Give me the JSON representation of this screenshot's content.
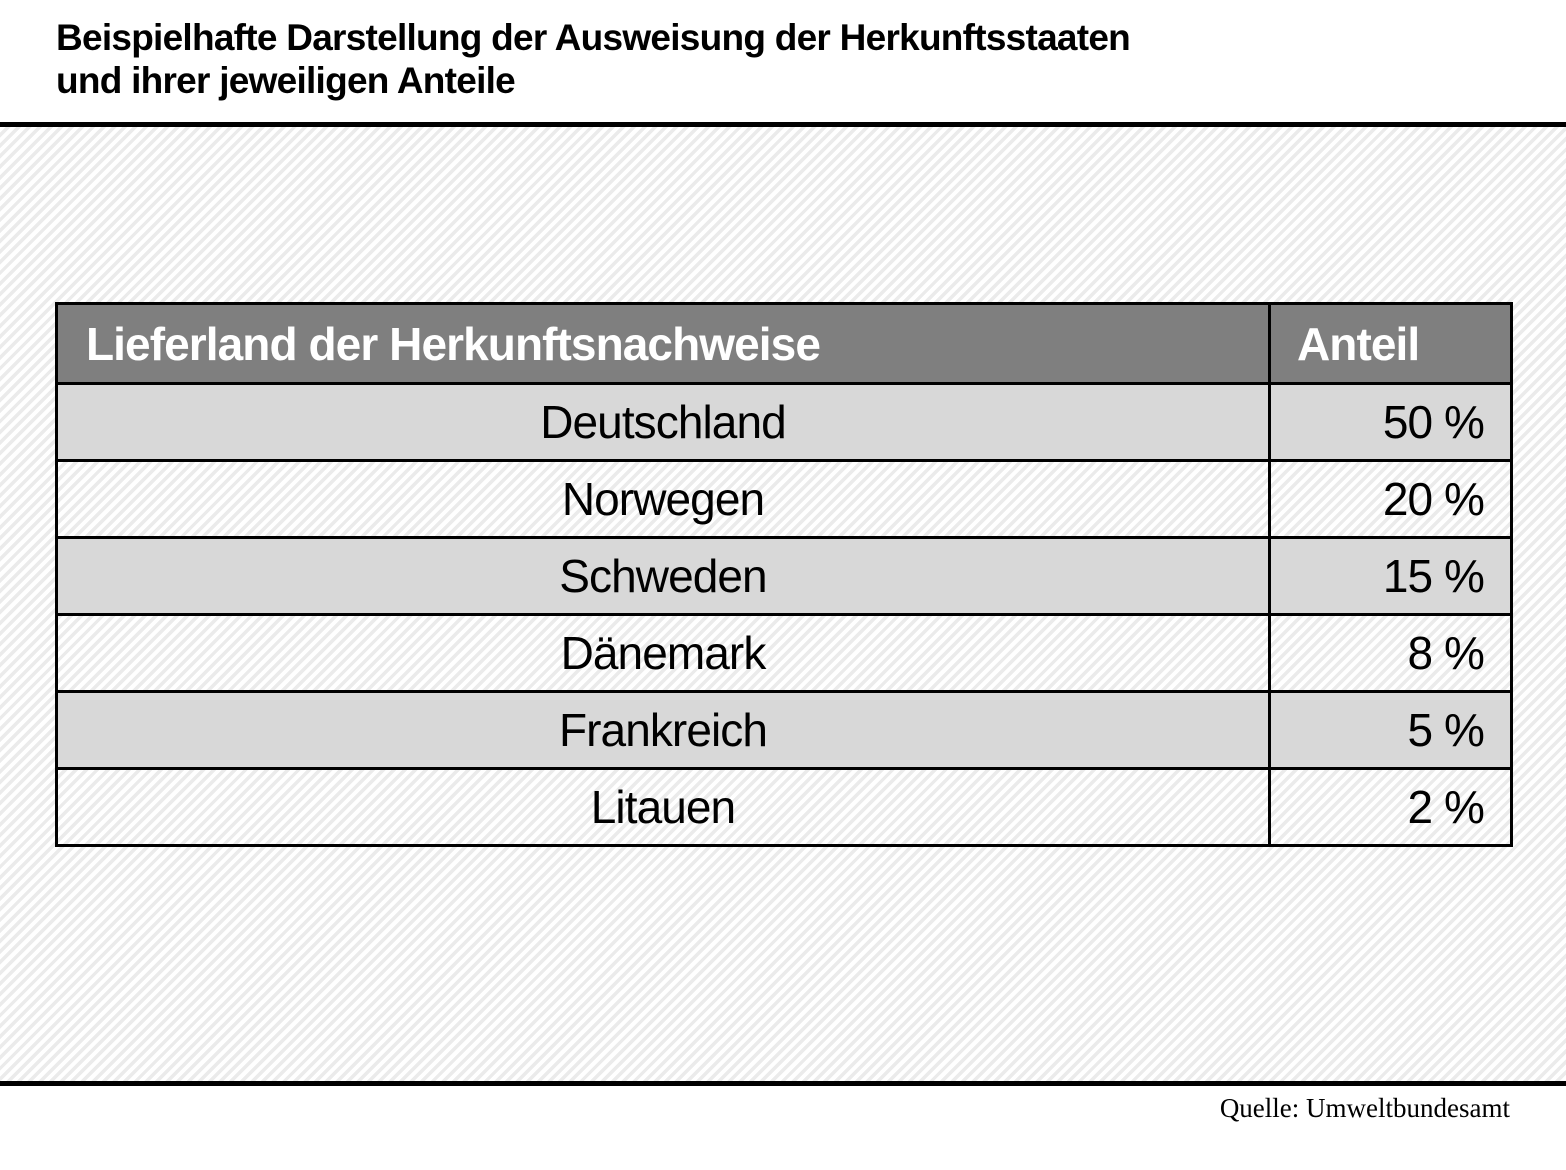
{
  "title": {
    "line1": "Beispielhafte Darstellung der Ausweisung der Herkunftsstaaten",
    "line2": "und ihrer jeweiligen Anteile"
  },
  "table": {
    "headers": {
      "country": "Lieferland der Herkunftsnachweise",
      "share": "Anteil"
    },
    "rows": [
      {
        "country": "Deutschland",
        "share": "50 %"
      },
      {
        "country": "Norwegen",
        "share": "20 %"
      },
      {
        "country": "Schweden",
        "share": "15 %"
      },
      {
        "country": "Dänemark",
        "share": "8 %"
      },
      {
        "country": "Frankreich",
        "share": "5 %"
      },
      {
        "country": "Litauen",
        "share": "2 %"
      }
    ]
  },
  "source": "Quelle: Umweltbundesamt",
  "colors": {
    "header_bg": "#7f7f7f",
    "header_text": "#ffffff",
    "shaded_row_bg": "#d8d8d8",
    "border": "#000000",
    "hatch_stripe": "#ebebeb"
  },
  "chart_data": {
    "type": "table",
    "title": "Beispielhafte Darstellung der Ausweisung der Herkunftsstaaten und ihrer jeweiligen Anteile",
    "columns": [
      "Lieferland der Herkunftsnachweise",
      "Anteil"
    ],
    "categories": [
      "Deutschland",
      "Norwegen",
      "Schweden",
      "Dänemark",
      "Frankreich",
      "Litauen"
    ],
    "values": [
      50,
      20,
      15,
      8,
      5,
      2
    ],
    "unit": "%",
    "source": "Quelle: Umweltbundesamt"
  }
}
